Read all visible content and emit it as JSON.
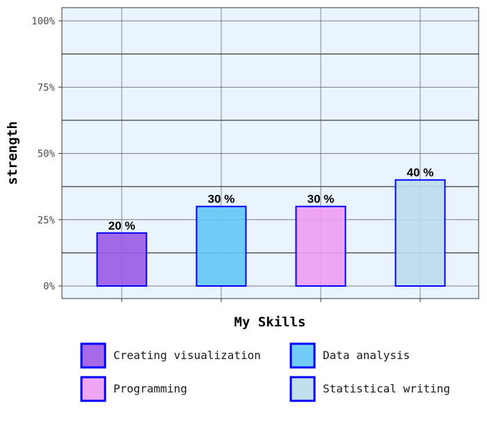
{
  "chart_data": {
    "type": "bar",
    "categories": [
      "Creating visualization",
      "Data analysis",
      "Programming",
      "Statistical writing"
    ],
    "values": [
      20,
      30,
      30,
      40
    ],
    "data_labels": [
      "20 %",
      "30 %",
      "30 %",
      "40 %"
    ],
    "xlabel": "My Skills",
    "ylabel": "strength",
    "ylim": [
      0,
      100
    ],
    "yticks": [
      0,
      25,
      50,
      75,
      100
    ],
    "ytick_labels": [
      "0%",
      "25%",
      "50%",
      "75%",
      "100%"
    ],
    "grid": true,
    "legend_position": "bottom",
    "colors": {
      "bars": [
        "#9B59E8",
        "#63C6F8",
        "#ED9CF3",
        "#BCDCEC"
      ],
      "bar_outline": "#0000FF",
      "panel_background": "#EAF4FF"
    }
  }
}
